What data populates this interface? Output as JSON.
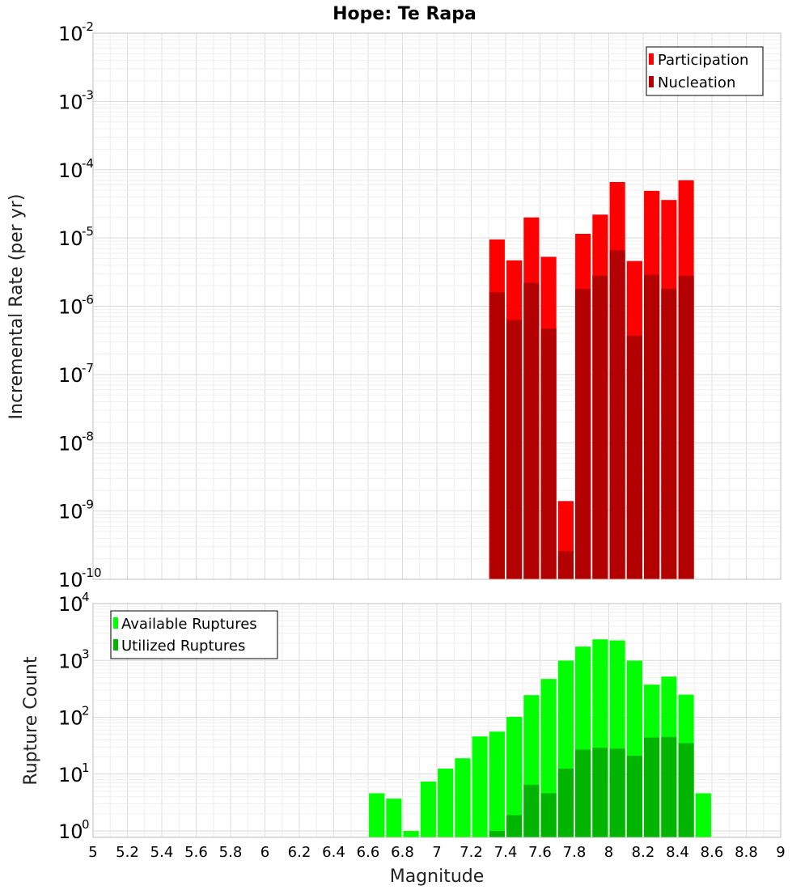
{
  "chart_data": [
    {
      "type": "bar",
      "title": "Hope: Te Rapa",
      "xlabel": "Magnitude",
      "ylabel": "Incremental Rate (per yr)",
      "y_scale": "log",
      "xlim": [
        5,
        9
      ],
      "ylim": [
        1e-10,
        0.01
      ],
      "grid": true,
      "legend_position": "top-right",
      "bar_width": 0.09,
      "x_ticks": [
        "5",
        "5.2",
        "5.4",
        "5.6",
        "5.8",
        "6",
        "6.2",
        "6.4",
        "6.6",
        "6.8",
        "7",
        "7.2",
        "7.4",
        "7.6",
        "7.8",
        "8",
        "8.2",
        "8.4",
        "8.6",
        "8.8",
        "9"
      ],
      "y_tick_exponents": [
        "-10",
        "-9",
        "-8",
        "-7",
        "-6",
        "-5",
        "-4",
        "-3",
        "-2"
      ],
      "series": [
        {
          "name": "Participation",
          "color": "#ff0000",
          "x": [
            7.35,
            7.45,
            7.55,
            7.65,
            7.75,
            7.85,
            7.95,
            8.05,
            8.15,
            8.25,
            8.35,
            8.45
          ],
          "values": [
            9.5e-06,
            4.7e-06,
            2e-05,
            5.3e-06,
            1.4e-09,
            1.15e-05,
            2.2e-05,
            6.6e-05,
            4.6e-06,
            4.9e-05,
            3.6e-05,
            7e-05
          ]
        },
        {
          "name": "Nucleation",
          "color": "#b30000",
          "x": [
            7.35,
            7.45,
            7.55,
            7.65,
            7.75,
            7.85,
            7.95,
            8.05,
            8.15,
            8.25,
            8.35,
            8.45
          ],
          "values": [
            1.6e-06,
            6.3e-07,
            2.2e-06,
            4.7e-07,
            2.6e-10,
            1.8e-06,
            2.8e-06,
            6.6e-06,
            3.7e-07,
            2.9e-06,
            1.8e-06,
            2.8e-06
          ]
        }
      ]
    },
    {
      "type": "bar",
      "xlabel": "Magnitude",
      "ylabel": "Rupture Count",
      "y_scale": "log",
      "xlim": [
        5,
        9
      ],
      "ylim": [
        0.77,
        10000
      ],
      "grid": true,
      "legend_position": "top-left",
      "bar_width": 0.09,
      "y_tick_exponents": [
        "0",
        "1",
        "2",
        "3",
        "4"
      ],
      "series": [
        {
          "name": "Available Ruptures",
          "color": "#00ff00",
          "x": [
            6.65,
            6.75,
            6.85,
            6.95,
            7.05,
            7.15,
            7.25,
            7.35,
            7.45,
            7.55,
            7.65,
            7.75,
            7.85,
            7.95,
            8.05,
            8.15,
            8.25,
            8.35,
            8.45,
            8.55
          ],
          "values": [
            4.6,
            3.7,
            1.0,
            7.4,
            12.5,
            19,
            46,
            56,
            102,
            245,
            472,
            990,
            1750,
            2350,
            2250,
            990,
            375,
            520,
            250,
            4.6
          ]
        },
        {
          "name": "Utilized Ruptures",
          "color": "#00b400",
          "x": [
            7.35,
            7.45,
            7.55,
            7.65,
            7.75,
            7.85,
            7.95,
            8.05,
            8.15,
            8.25,
            8.35,
            8.45
          ],
          "values": [
            1.0,
            1.9,
            6.5,
            4.6,
            12.5,
            27,
            29,
            28,
            21,
            44,
            45,
            35
          ]
        }
      ]
    }
  ]
}
